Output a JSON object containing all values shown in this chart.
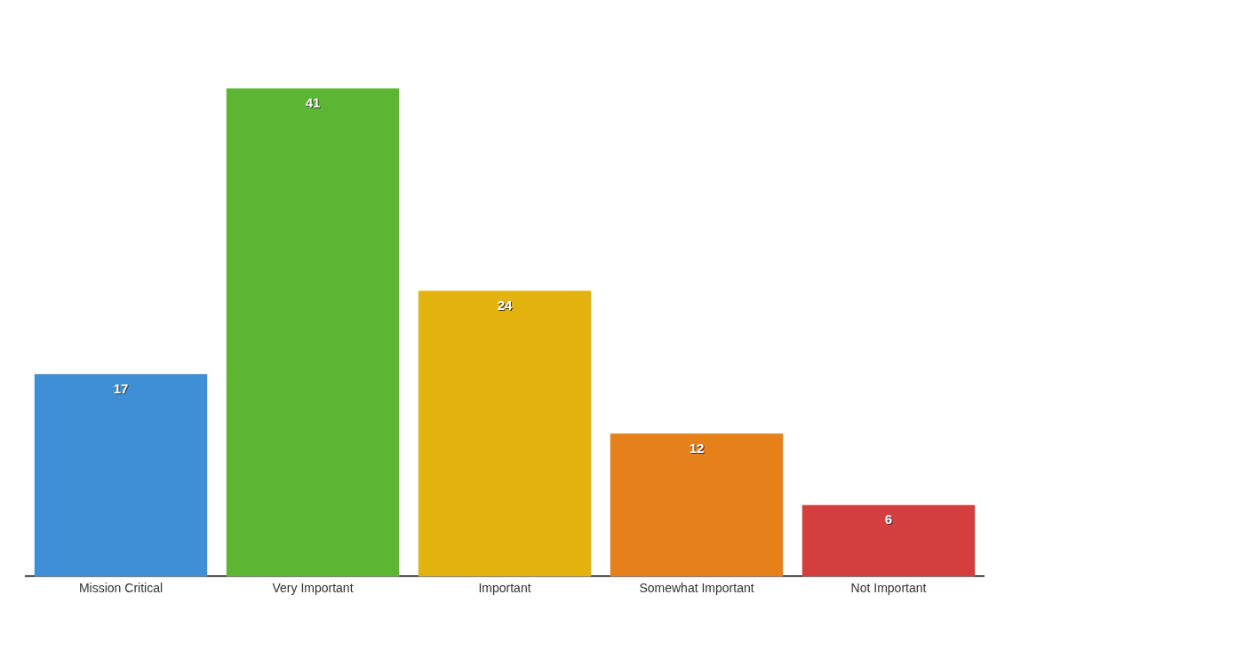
{
  "chart_data": {
    "type": "bar",
    "categories": [
      "Mission Critical",
      "Very Important",
      "Important",
      "Somewhat Important",
      "Not Important"
    ],
    "values": [
      17,
      41,
      24,
      12,
      6
    ],
    "colors": [
      "#3f8fd6",
      "#5cb533",
      "#e2b20e",
      "#e5801a",
      "#d33f3f"
    ],
    "data_labels": true,
    "grid": false,
    "legend": false
  }
}
